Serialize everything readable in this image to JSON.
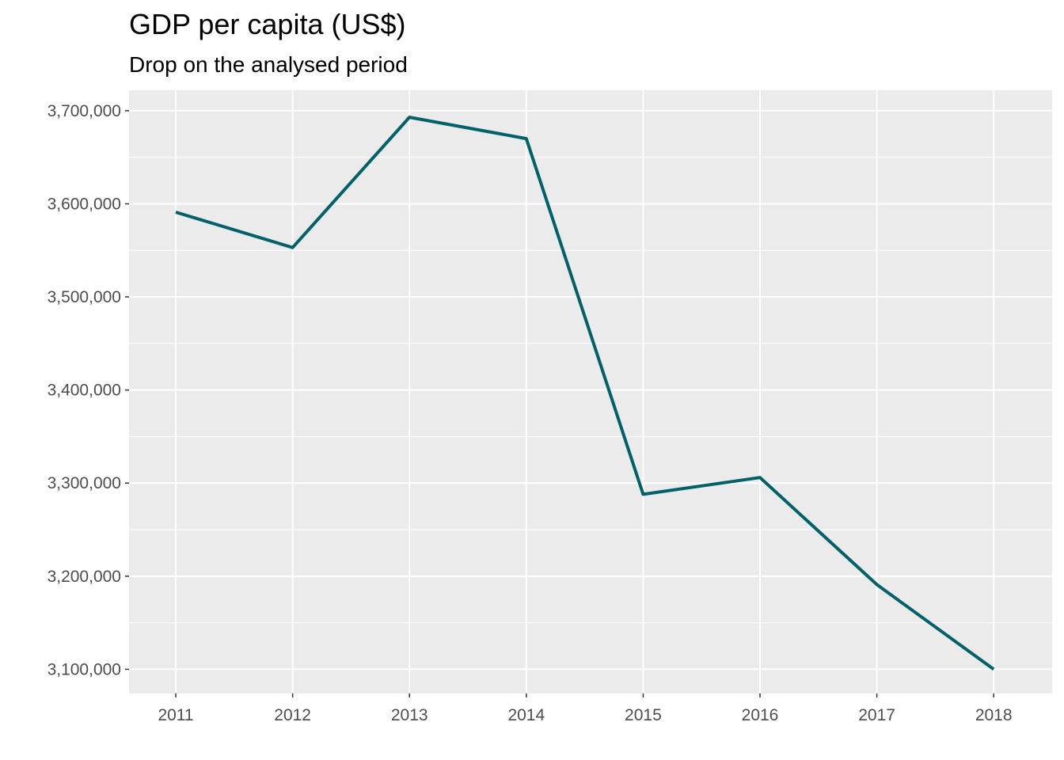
{
  "chart_data": {
    "type": "line",
    "title": "GDP per capita (US$)",
    "subtitle": "Drop on the analysed period",
    "xlabel": "",
    "ylabel": "",
    "x": [
      2011,
      2012,
      2013,
      2014,
      2015,
      2016,
      2017,
      2018
    ],
    "x_tick_labels": [
      "2011",
      "2012",
      "2013",
      "2014",
      "2015",
      "2016",
      "2017",
      "2018"
    ],
    "series": [
      {
        "values": [
          3591000,
          3553000,
          3693000,
          3670000,
          3288000,
          3306000,
          3191000,
          3100000
        ]
      }
    ],
    "y_ticks": [
      3100000,
      3200000,
      3300000,
      3400000,
      3500000,
      3600000,
      3700000
    ],
    "y_tick_labels": [
      "3,100,000",
      "3,200,000",
      "3,300,000",
      "3,400,000",
      "3,500,000",
      "3,600,000",
      "3,700,000"
    ],
    "xlim": [
      2010.6,
      2018.5
    ],
    "ylim": [
      3074000,
      3722000
    ],
    "grid": true,
    "colors": {
      "line": "#006169",
      "panel": "#ebebeb",
      "grid": "#ffffff",
      "text": "#4d4d4d"
    }
  }
}
